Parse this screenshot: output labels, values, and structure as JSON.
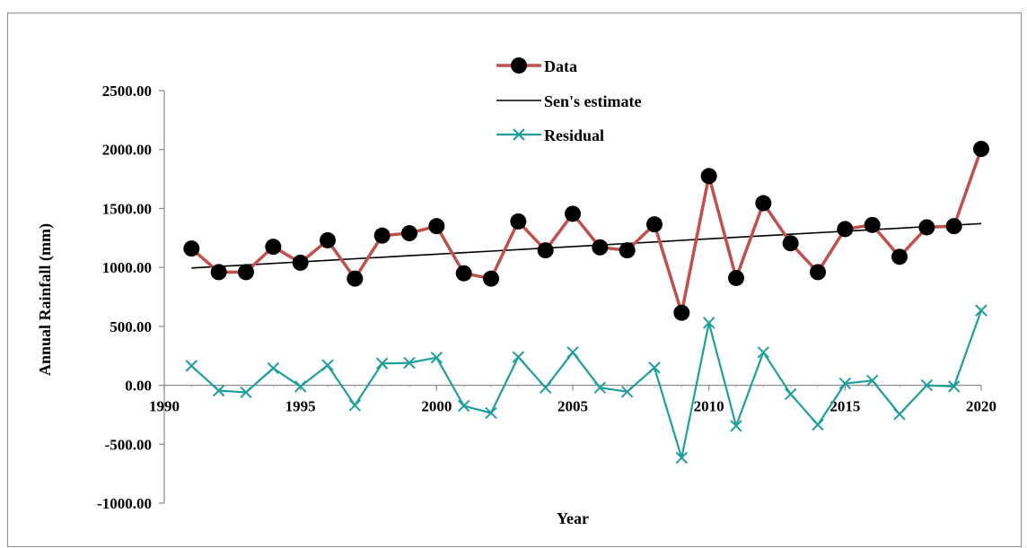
{
  "chart_data": {
    "type": "line",
    "title": "",
    "xlabel": "Year",
    "ylabel": "Annual  Rainfall (mm)",
    "xlim": [
      1990,
      2020
    ],
    "ylim": [
      -1000,
      2500
    ],
    "x_ticks": [
      "1990",
      "1995",
      "2000",
      "2005",
      "2010",
      "2015",
      "2020"
    ],
    "y_ticks": [
      "2500.00",
      "2000.00",
      "1500.00",
      "1000.00",
      "500.00",
      "0.00",
      "-500.00",
      "-1000.00"
    ],
    "x": [
      1991,
      1992,
      1993,
      1994,
      1995,
      1996,
      1997,
      1998,
      1999,
      2000,
      2001,
      2002,
      2003,
      2004,
      2005,
      2006,
      2007,
      2008,
      2009,
      2010,
      2011,
      2012,
      2013,
      2014,
      2015,
      2016,
      2017,
      2018,
      2019,
      2020
    ],
    "series": [
      {
        "name": "Data",
        "color": "#c0504d",
        "marker": "circle",
        "values": [
          1160,
          960,
          960,
          1175,
          1040,
          1230,
          905,
          1270,
          1290,
          1350,
          950,
          905,
          1390,
          1145,
          1455,
          1170,
          1145,
          1365,
          615,
          1775,
          910,
          1545,
          1205,
          960,
          1325,
          1360,
          1090,
          1340,
          1350,
          2005
        ]
      },
      {
        "name": "Sen's estimate",
        "color": "#000000",
        "marker": "none",
        "values": [
          995,
          1008,
          1021,
          1034,
          1047,
          1060,
          1073,
          1086,
          1099,
          1112,
          1125,
          1138,
          1151,
          1164,
          1177,
          1190,
          1203,
          1216,
          1229,
          1242,
          1255,
          1268,
          1281,
          1294,
          1307,
          1320,
          1333,
          1346,
          1359,
          1372
        ]
      },
      {
        "name": "Residual",
        "color": "#1f9e9a",
        "marker": "x",
        "values": [
          165,
          -45,
          -60,
          145,
          -10,
          170,
          -170,
          185,
          190,
          235,
          -175,
          -235,
          240,
          -20,
          280,
          -20,
          -55,
          150,
          -615,
          530,
          -345,
          280,
          -75,
          -335,
          15,
          40,
          -245,
          0,
          -10,
          635
        ]
      }
    ],
    "legend_position": "top-center",
    "grid": false
  }
}
